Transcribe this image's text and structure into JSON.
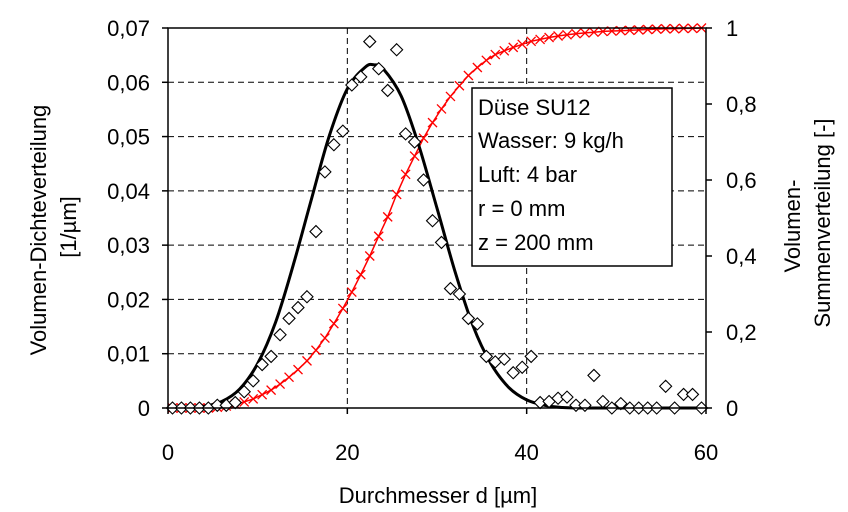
{
  "chart_data": {
    "type": "line",
    "xlabel": "Durchmesser d [µm]",
    "ylabel_left": [
      "Volumen-Dichteverteilung",
      "[1/µm]"
    ],
    "ylabel_right": [
      "Volumen-",
      "Summenverteilung [-]"
    ],
    "xlim": [
      0,
      60
    ],
    "ylim_left": [
      0,
      0.07
    ],
    "ylim_right": [
      0,
      1
    ],
    "x_ticks": [
      "0",
      "20",
      "40",
      "60"
    ],
    "y_left_ticks": [
      "0",
      "0,01",
      "0,02",
      "0,03",
      "0,04",
      "0,05",
      "0,06",
      "0,07"
    ],
    "y_right_ticks": [
      "0",
      "0,2",
      "0,4",
      "0,6",
      "0,8",
      "1"
    ],
    "grid": "dashed, at x = 20, 40 and y = 0.01 … 0.07",
    "annotation": [
      "Düse SU12",
      "Wasser: 9 kg/h",
      "Luft: 4 bar",
      "r = 0 mm",
      "z = 200 mm"
    ],
    "colors": {
      "density_fit": "#000000",
      "density_points": "#000000",
      "cumulative": "#ff0000"
    },
    "series": [
      {
        "kind": "density-fit",
        "axis": "left",
        "marker": "none",
        "line": "solid",
        "x": [
          0,
          2,
          4,
          6,
          8,
          10,
          12,
          14,
          16,
          18,
          20,
          22,
          23,
          24,
          26,
          28,
          30,
          32,
          34,
          36,
          38,
          40,
          42,
          44,
          46,
          48,
          50,
          55,
          60
        ],
        "values": [
          0.0,
          0.0,
          0.0003,
          0.0012,
          0.0035,
          0.0082,
          0.0158,
          0.0265,
          0.0385,
          0.0502,
          0.0588,
          0.0628,
          0.0632,
          0.0625,
          0.0575,
          0.0482,
          0.0368,
          0.0252,
          0.0152,
          0.0082,
          0.0038,
          0.0015,
          0.0005,
          0.0001,
          0.0,
          0.0,
          0.0,
          0.0,
          0.0
        ]
      },
      {
        "kind": "density-measured",
        "axis": "left",
        "marker": "diamond",
        "line": "none",
        "x": [
          0.5,
          1.5,
          2.5,
          3.5,
          4.5,
          5.5,
          6.5,
          7.5,
          8.5,
          9.5,
          10.5,
          11.5,
          12.5,
          13.5,
          14.5,
          15.5,
          16.5,
          17.5,
          18.5,
          19.5,
          20.5,
          21.5,
          22.5,
          23.5,
          24.5,
          25.5,
          26.5,
          27.5,
          28.5,
          29.5,
          30.5,
          31.5,
          32.5,
          33.5,
          34.5,
          35.5,
          36.5,
          37.5,
          38.5,
          39.5,
          40.5,
          41.5,
          42.5,
          43.5,
          44.5,
          45.5,
          46.5,
          47.5,
          48.5,
          49.5,
          50.5,
          51.5,
          52.5,
          53.5,
          54.5,
          55.5,
          56.5,
          57.5,
          58.5,
          59.5
        ],
        "values": [
          0.0,
          0.0,
          0.0,
          0.0,
          0.0,
          0.0005,
          0.0005,
          0.001,
          0.003,
          0.005,
          0.008,
          0.0095,
          0.0135,
          0.0165,
          0.0185,
          0.0205,
          0.0325,
          0.0435,
          0.0485,
          0.051,
          0.0595,
          0.061,
          0.0675,
          0.0625,
          0.0585,
          0.066,
          0.0505,
          0.049,
          0.042,
          0.0345,
          0.0305,
          0.022,
          0.021,
          0.0165,
          0.0155,
          0.0095,
          0.0085,
          0.009,
          0.0065,
          0.0075,
          0.0095,
          0.001,
          0.0012,
          0.0018,
          0.002,
          0.0005,
          0.0005,
          0.006,
          0.0012,
          0.0,
          0.0008,
          0.0,
          0.0,
          0.0,
          0.0,
          0.004,
          0.0,
          0.0025,
          0.0025,
          0.0
        ]
      },
      {
        "kind": "cumulative",
        "axis": "right",
        "marker": "x",
        "line": "solid",
        "x": [
          0.5,
          1.5,
          2.5,
          3.5,
          4.5,
          5.5,
          6.5,
          7.5,
          8.5,
          9.5,
          10.5,
          11.5,
          12.5,
          13.5,
          14.5,
          15.5,
          16.5,
          17.5,
          18.5,
          19.5,
          20.5,
          21.5,
          22.5,
          23.5,
          24.5,
          25.5,
          26.5,
          27.5,
          28.5,
          29.5,
          30.5,
          31.5,
          32.5,
          33.5,
          34.5,
          35.5,
          36.5,
          37.5,
          38.5,
          39.5,
          40.5,
          41.5,
          42.5,
          43.5,
          44.5,
          45.5,
          46.5,
          47.5,
          48.5,
          49.5,
          50.5,
          51.5,
          52.5,
          53.5,
          54.5,
          55.5,
          56.5,
          57.5,
          58.5,
          59.5
        ],
        "values": [
          0.0,
          0.0,
          0.0,
          0.0,
          0.0,
          0.002,
          0.005,
          0.01,
          0.016,
          0.024,
          0.035,
          0.047,
          0.063,
          0.081,
          0.101,
          0.124,
          0.152,
          0.184,
          0.222,
          0.262,
          0.305,
          0.351,
          0.4,
          0.452,
          0.503,
          0.562,
          0.615,
          0.663,
          0.71,
          0.751,
          0.787,
          0.82,
          0.848,
          0.875,
          0.896,
          0.915,
          0.93,
          0.94,
          0.949,
          0.957,
          0.965,
          0.97,
          0.975,
          0.979,
          0.982,
          0.985,
          0.987,
          0.989,
          0.991,
          0.992,
          0.993,
          0.994,
          0.995,
          0.996,
          0.997,
          0.998,
          0.998,
          0.999,
          0.999,
          1.0
        ]
      }
    ]
  }
}
